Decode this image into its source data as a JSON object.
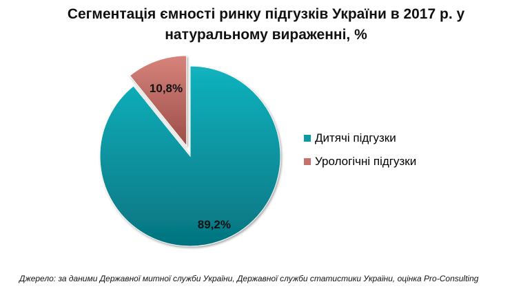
{
  "title_line1": "Сегментація ємності ринку підгузків України в 2017 р. у",
  "title_line2": "натуральному вираженні, %",
  "source": "Джерело: за даними Державної митної служби України, Державної служби статистики України, оцінка Pro-Consulting",
  "chart_data": {
    "type": "pie",
    "title": "Сегментація ємності ринку підгузків України в 2017 р. у натуральному вираженні, %",
    "categories": [
      "Дитячі підгузки",
      "Урологічні підгузки"
    ],
    "values": [
      89.2,
      10.8
    ],
    "data_labels": [
      "89,2%",
      "10,8%"
    ],
    "colors": [
      "#0b9aa6",
      "#c6716a"
    ],
    "exploded": [
      false,
      true
    ],
    "legend": "right"
  }
}
